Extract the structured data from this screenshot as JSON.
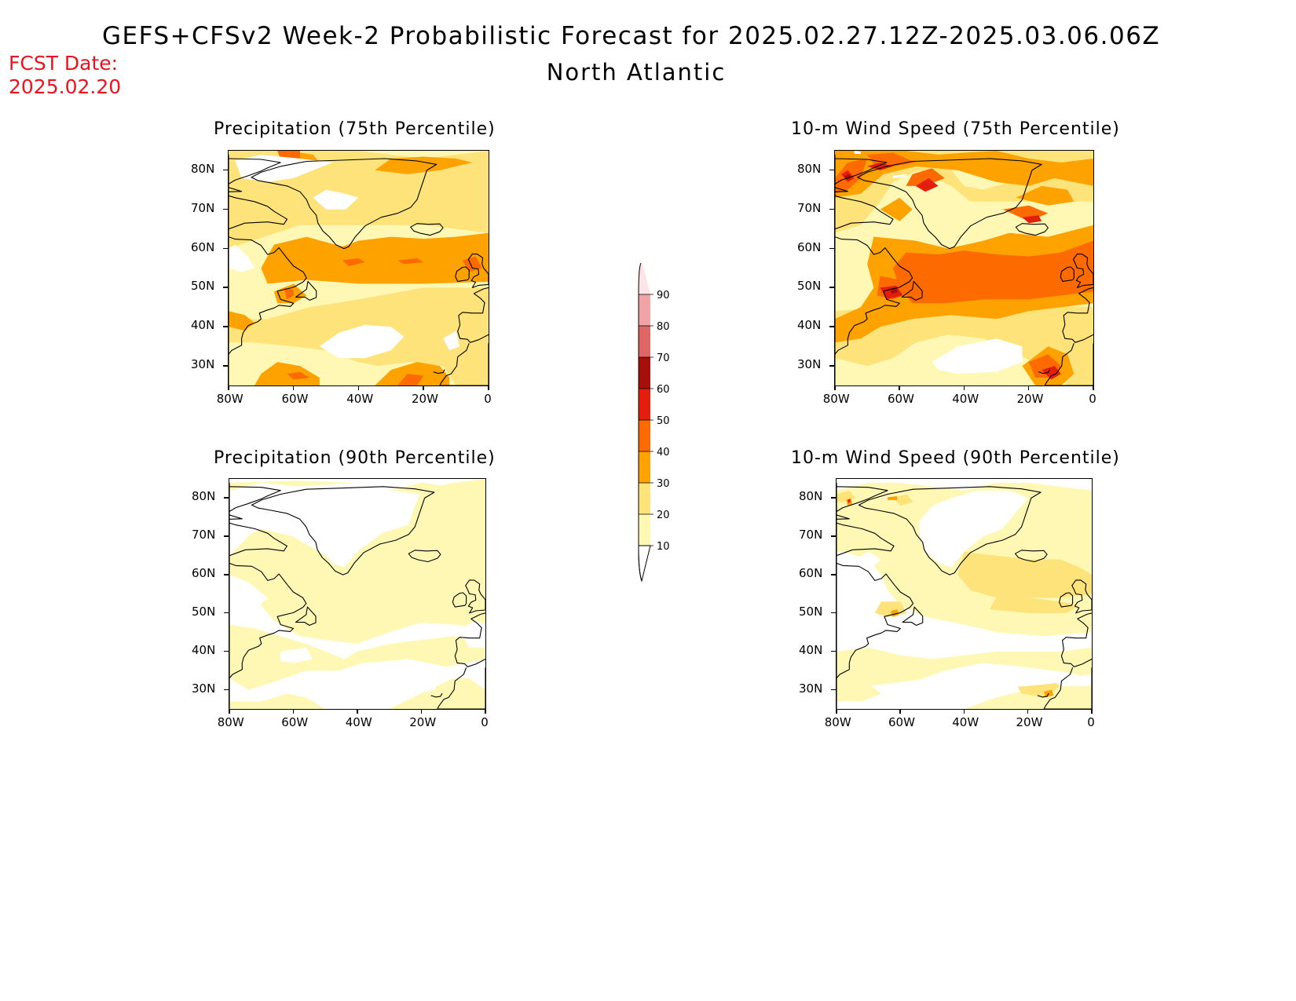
{
  "header": {
    "title": "GEFS+CFSv2 Week-2 Probabilistic Forecast for 2025.02.27.12Z-2025.03.06.06Z",
    "subtitle": "North Atlantic",
    "fcst_label": "FCST Date:",
    "fcst_date": "2025.02.20"
  },
  "panels": [
    {
      "title": "Precipitation (75th Percentile)",
      "variable": "precipitation",
      "percentile": 75
    },
    {
      "title": "10-m Wind Speed (75th Percentile)",
      "variable": "wind",
      "percentile": 75
    },
    {
      "title": "Precipitation (90th Percentile)",
      "variable": "precipitation",
      "percentile": 90
    },
    {
      "title": "10-m Wind Speed (90th Percentile)",
      "variable": "wind",
      "percentile": 90
    }
  ],
  "axes": {
    "lat_labels": [
      "80N",
      "70N",
      "60N",
      "50N",
      "40N",
      "30N"
    ],
    "lon_labels": [
      "80W",
      "60W",
      "40W",
      "20W",
      "0"
    ]
  },
  "colorbar": {
    "labels": [
      "90",
      "80",
      "70",
      "60",
      "50",
      "40",
      "30",
      "20",
      "10"
    ],
    "colors": [
      "#fde4e6",
      "#f2a3a6",
      "#e06565",
      "#a60f0a",
      "#e31e0c",
      "#fd6b00",
      "#fea200",
      "#fee27a",
      "#fff8b4"
    ]
  },
  "palette": {
    "white": "#ffffff",
    "c10": "#fff8b4",
    "c20": "#fee27a",
    "c30": "#fea200",
    "c40": "#fd6b00",
    "c50": "#e31e0c",
    "c60": "#a60f0a",
    "title_red": "#e8141e"
  }
}
